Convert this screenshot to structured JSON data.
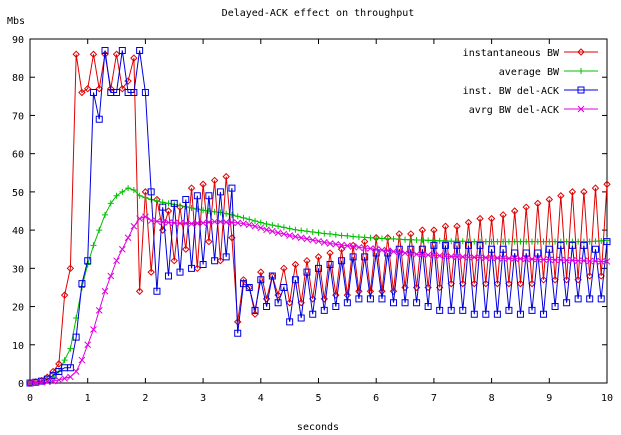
{
  "chart_data": {
    "type": "line",
    "title": "Delayed-ACK effect on throughput",
    "xlabel": "seconds",
    "ylabel": "Mbs",
    "xlim": [
      0,
      10
    ],
    "ylim": [
      0,
      90
    ],
    "xticks": [
      0,
      1,
      2,
      3,
      4,
      5,
      6,
      7,
      8,
      9,
      10
    ],
    "yticks": [
      0,
      10,
      20,
      30,
      40,
      50,
      60,
      70,
      80,
      90
    ],
    "grid": false,
    "legend_position": "top-right",
    "series": [
      {
        "name": "instantaneous BW",
        "color": "#e00000",
        "marker": "diamond",
        "x": [
          0.0,
          0.1,
          0.2,
          0.3,
          0.4,
          0.5,
          0.6,
          0.7,
          0.8,
          0.9,
          1.0,
          1.1,
          1.2,
          1.3,
          1.4,
          1.5,
          1.6,
          1.7,
          1.8,
          1.9,
          2.0,
          2.1,
          2.2,
          2.3,
          2.4,
          2.5,
          2.6,
          2.7,
          2.8,
          2.9,
          3.0,
          3.1,
          3.2,
          3.3,
          3.4,
          3.5,
          3.6,
          3.7,
          3.8,
          3.9,
          4.0,
          4.1,
          4.2,
          4.3,
          4.4,
          4.5,
          4.6,
          4.7,
          4.8,
          4.9,
          5.0,
          5.1,
          5.2,
          5.3,
          5.4,
          5.5,
          5.6,
          5.7,
          5.8,
          5.9,
          6.0,
          6.1,
          6.2,
          6.3,
          6.4,
          6.5,
          6.6,
          6.7,
          6.8,
          6.9,
          7.0,
          7.1,
          7.2,
          7.3,
          7.4,
          7.5,
          7.6,
          7.7,
          7.8,
          7.9,
          8.0,
          8.1,
          8.2,
          8.3,
          8.4,
          8.5,
          8.6,
          8.7,
          8.8,
          8.9,
          9.0,
          9.1,
          9.2,
          9.3,
          9.4,
          9.5,
          9.6,
          9.7,
          9.8,
          9.9,
          10.0
        ],
        "y": [
          0,
          0.3,
          0.6,
          1.5,
          3,
          5,
          23,
          30,
          86,
          76,
          77,
          86,
          77,
          86,
          77,
          86,
          77,
          79,
          85,
          24,
          50,
          29,
          48,
          40,
          45,
          32,
          46,
          35,
          51,
          30,
          52,
          37,
          53,
          32,
          54,
          38,
          16,
          27,
          25,
          18,
          29,
          22,
          28,
          23,
          30,
          21,
          31,
          21,
          32,
          22,
          33,
          22,
          34,
          23,
          35,
          23,
          36,
          24,
          37,
          24,
          38,
          24,
          38,
          24,
          39,
          25,
          39,
          25,
          40,
          25,
          40,
          25,
          41,
          26,
          41,
          26,
          42,
          26,
          43,
          26,
          43,
          26,
          44,
          26,
          45,
          26,
          46,
          26,
          47,
          27,
          48,
          27,
          49,
          27,
          50,
          27,
          50,
          28,
          51,
          28,
          52
        ]
      },
      {
        "name": "average BW",
        "color": "#00c000",
        "marker": "plus",
        "x": [
          0.0,
          0.1,
          0.2,
          0.3,
          0.4,
          0.5,
          0.6,
          0.7,
          0.8,
          0.9,
          1.0,
          1.1,
          1.2,
          1.3,
          1.4,
          1.5,
          1.6,
          1.7,
          1.8,
          1.9,
          2.0,
          2.1,
          2.2,
          2.3,
          2.4,
          2.5,
          2.6,
          2.7,
          2.8,
          2.9,
          3.0,
          3.1,
          3.2,
          3.3,
          3.4,
          3.5,
          3.6,
          3.7,
          3.8,
          3.9,
          4.0,
          4.1,
          4.2,
          4.3,
          4.4,
          4.5,
          4.6,
          4.7,
          4.8,
          4.9,
          5.0,
          5.1,
          5.2,
          5.3,
          5.4,
          5.5,
          5.6,
          5.7,
          5.8,
          5.9,
          6.0,
          6.1,
          6.2,
          6.3,
          6.4,
          6.5,
          6.6,
          6.7,
          6.8,
          6.9,
          7.0,
          7.1,
          7.2,
          7.3,
          7.4,
          7.5,
          7.6,
          7.7,
          7.8,
          7.9,
          8.0,
          8.1,
          8.2,
          8.3,
          8.4,
          8.5,
          8.6,
          8.7,
          8.8,
          8.9,
          9.0,
          9.1,
          9.2,
          9.3,
          9.4,
          9.5,
          9.6,
          9.7,
          9.8,
          9.9,
          10.0
        ],
        "y": [
          0,
          0.2,
          0.4,
          0.8,
          1.5,
          3,
          6,
          9,
          17,
          25,
          31,
          36,
          40,
          44,
          47,
          49,
          50,
          51,
          50.5,
          49,
          48.5,
          48,
          47.6,
          47.3,
          47.0,
          46.7,
          46.4,
          46.1,
          45.8,
          45.5,
          45.2,
          45,
          44.8,
          44.6,
          44.3,
          44,
          43.6,
          43.2,
          42.8,
          42.4,
          42,
          41.6,
          41.3,
          41,
          40.7,
          40.4,
          40.1,
          39.9,
          39.7,
          39.5,
          39.3,
          39.1,
          39,
          38.8,
          38.6,
          38.5,
          38.3,
          38.2,
          38.1,
          38,
          37.9,
          37.8,
          37.7,
          37.7,
          37.6,
          37.5,
          37.5,
          37.4,
          37.4,
          37.3,
          37.3,
          37.2,
          37.2,
          37.1,
          37.1,
          37.1,
          37.0,
          37.0,
          37.0,
          37.0,
          37.0,
          37.0,
          37.0,
          37.0,
          37.0,
          37.0,
          37.0,
          37.0,
          37.0,
          37.0,
          37.0,
          37.0,
          37.0,
          37.0,
          37.0,
          37.0,
          37.0,
          37.0,
          37.1,
          37.2,
          37.3
        ]
      },
      {
        "name": "inst. BW del-ACK",
        "color": "#0000e0",
        "marker": "square",
        "x": [
          0.0,
          0.1,
          0.2,
          0.3,
          0.4,
          0.5,
          0.6,
          0.7,
          0.8,
          0.9,
          1.0,
          1.1,
          1.2,
          1.3,
          1.4,
          1.5,
          1.6,
          1.7,
          1.8,
          1.9,
          2.0,
          2.1,
          2.2,
          2.3,
          2.4,
          2.5,
          2.6,
          2.7,
          2.8,
          2.9,
          3.0,
          3.1,
          3.2,
          3.3,
          3.4,
          3.5,
          3.6,
          3.7,
          3.8,
          3.9,
          4.0,
          4.1,
          4.2,
          4.3,
          4.4,
          4.5,
          4.6,
          4.7,
          4.8,
          4.9,
          5.0,
          5.1,
          5.2,
          5.3,
          5.4,
          5.5,
          5.6,
          5.7,
          5.8,
          5.9,
          6.0,
          6.1,
          6.2,
          6.3,
          6.4,
          6.5,
          6.6,
          6.7,
          6.8,
          6.9,
          7.0,
          7.1,
          7.2,
          7.3,
          7.4,
          7.5,
          7.6,
          7.7,
          7.8,
          7.9,
          8.0,
          8.1,
          8.2,
          8.3,
          8.4,
          8.5,
          8.6,
          8.7,
          8.8,
          8.9,
          9.0,
          9.1,
          9.2,
          9.3,
          9.4,
          9.5,
          9.6,
          9.7,
          9.8,
          9.9,
          10.0
        ],
        "y": [
          0,
          0.2,
          0.5,
          1,
          2,
          3,
          4,
          4,
          12,
          26,
          32,
          76,
          69,
          87,
          76,
          76,
          87,
          76,
          76,
          87,
          76,
          50,
          24,
          46,
          28,
          47,
          29,
          48,
          30,
          49,
          31,
          49,
          32,
          50,
          33,
          51,
          13,
          26,
          25,
          19,
          27,
          20,
          28,
          21,
          25,
          16,
          27,
          17,
          29,
          18,
          30,
          19,
          31,
          20,
          32,
          21,
          33,
          22,
          33,
          22,
          34,
          22,
          34,
          21,
          35,
          21,
          35,
          21,
          35,
          20,
          36,
          19,
          36,
          19,
          36,
          19,
          36,
          18,
          36,
          18,
          35,
          18,
          35,
          19,
          34,
          18,
          34,
          19,
          34,
          18,
          35,
          20,
          36,
          21,
          36,
          22,
          36,
          22,
          35,
          22,
          37
        ]
      },
      {
        "name": "avrg BW del-ACK",
        "color": "#e000e0",
        "marker": "cross",
        "x": [
          0.0,
          0.1,
          0.2,
          0.3,
          0.4,
          0.5,
          0.6,
          0.7,
          0.8,
          0.9,
          1.0,
          1.1,
          1.2,
          1.3,
          1.4,
          1.5,
          1.6,
          1.7,
          1.8,
          1.9,
          2.0,
          2.1,
          2.2,
          2.3,
          2.4,
          2.5,
          2.6,
          2.7,
          2.8,
          2.9,
          3.0,
          3.1,
          3.2,
          3.3,
          3.4,
          3.5,
          3.6,
          3.7,
          3.8,
          3.9,
          4.0,
          4.1,
          4.2,
          4.3,
          4.4,
          4.5,
          4.6,
          4.7,
          4.8,
          4.9,
          5.0,
          5.1,
          5.2,
          5.3,
          5.4,
          5.5,
          5.6,
          5.7,
          5.8,
          5.9,
          6.0,
          6.1,
          6.2,
          6.3,
          6.4,
          6.5,
          6.6,
          6.7,
          6.8,
          6.9,
          7.0,
          7.1,
          7.2,
          7.3,
          7.4,
          7.5,
          7.6,
          7.7,
          7.8,
          7.9,
          8.0,
          8.1,
          8.2,
          8.3,
          8.4,
          8.5,
          8.6,
          8.7,
          8.8,
          8.9,
          9.0,
          9.1,
          9.2,
          9.3,
          9.4,
          9.5,
          9.6,
          9.7,
          9.8,
          9.9,
          10.0
        ],
        "y": [
          0,
          0.1,
          0.2,
          0.3,
          0.5,
          0.8,
          1.2,
          1.6,
          3,
          6,
          10,
          14,
          19,
          24,
          28,
          32,
          35,
          38,
          41,
          43,
          43.5,
          42.5,
          42.3,
          42.1,
          42,
          41.9,
          41.8,
          41.8,
          41.7,
          41.8,
          41.9,
          42.1,
          42.2,
          42.2,
          42.1,
          42,
          41.9,
          41.7,
          41.4,
          41.0,
          40.6,
          40.1,
          39.7,
          39.3,
          39.0,
          38.6,
          38.3,
          38.0,
          37.7,
          37.4,
          37.1,
          36.8,
          36.5,
          36.3,
          36.1,
          35.9,
          35.7,
          35.5,
          35.3,
          35.2,
          35.0,
          34.8,
          34.6,
          34.4,
          34.2,
          34.0,
          33.9,
          33.7,
          33.6,
          33.5,
          33.4,
          33.3,
          33.2,
          33.1,
          33.0,
          33.0,
          32.9,
          32.9,
          32.8,
          32.8,
          32.7,
          32.7,
          32.6,
          32.6,
          32.6,
          32.5,
          32.5,
          32.4,
          32.4,
          32.3,
          32.3,
          32.2,
          32.2,
          32.1,
          32.1,
          32.0,
          32.0,
          31.9,
          31.9,
          31.8,
          31.8
        ]
      }
    ]
  }
}
